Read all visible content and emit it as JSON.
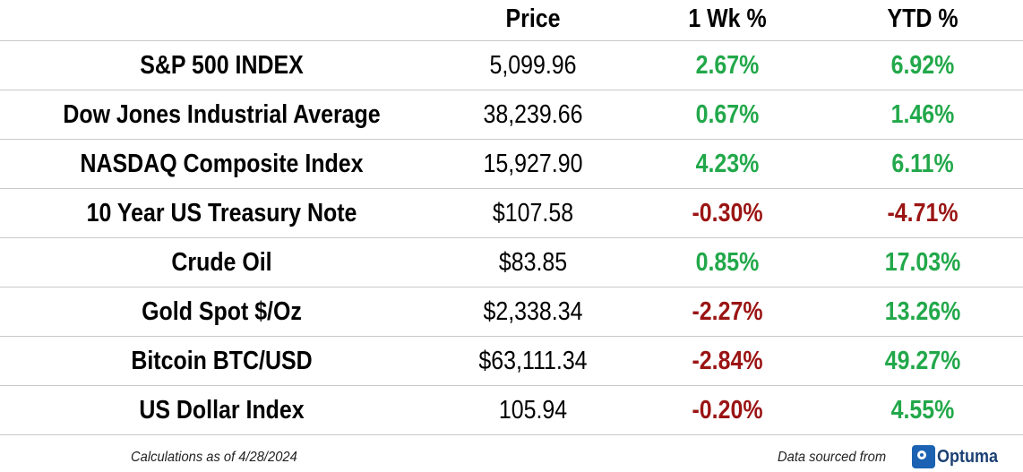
{
  "chart_data": {
    "type": "table",
    "columns": [
      "",
      "Price",
      "1 Wk %",
      "YTD %"
    ],
    "rows": [
      {
        "name": "S&P 500 INDEX",
        "price": "5,099.96",
        "wk": "2.67%",
        "ytd": "6.92%",
        "wk_sign": "pos",
        "ytd_sign": "pos"
      },
      {
        "name": "Dow Jones Industrial Average",
        "price": "38,239.66",
        "wk": "0.67%",
        "ytd": "1.46%",
        "wk_sign": "pos",
        "ytd_sign": "pos"
      },
      {
        "name": "NASDAQ Composite Index",
        "price": "15,927.90",
        "wk": "4.23%",
        "ytd": "6.11%",
        "wk_sign": "pos",
        "ytd_sign": "pos"
      },
      {
        "name": "10 Year US Treasury Note",
        "price": "$107.58",
        "wk": "-0.30%",
        "ytd": "-4.71%",
        "wk_sign": "neg",
        "ytd_sign": "neg"
      },
      {
        "name": "Crude Oil",
        "price": "$83.85",
        "wk": "0.85%",
        "ytd": "17.03%",
        "wk_sign": "pos",
        "ytd_sign": "pos"
      },
      {
        "name": "Gold Spot $/Oz",
        "price": "$2,338.34",
        "wk": "-2.27%",
        "ytd": "13.26%",
        "wk_sign": "neg",
        "ytd_sign": "pos"
      },
      {
        "name": "Bitcoin BTC/USD",
        "price": "$63,111.34",
        "wk": "-2.84%",
        "ytd": "49.27%",
        "wk_sign": "neg",
        "ytd_sign": "pos"
      },
      {
        "name": "US Dollar Index",
        "price": "105.94",
        "wk": "-0.20%",
        "ytd": "4.55%",
        "wk_sign": "neg",
        "ytd_sign": "pos"
      }
    ]
  },
  "footer": {
    "calc_note": "Calculations as of 4/28/2024",
    "source_note": "Data sourced from",
    "logo_text": "Optuma"
  },
  "colors": {
    "positive": "#22a84a",
    "negative": "#9b1414",
    "brand": "#1b62b3"
  }
}
